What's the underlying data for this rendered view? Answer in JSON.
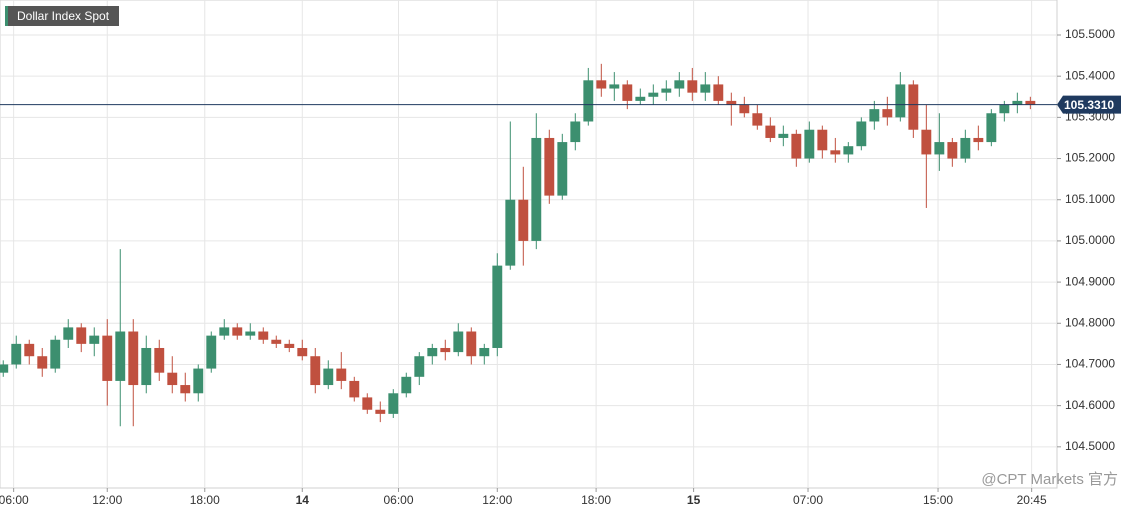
{
  "chart_data": {
    "type": "candlestick",
    "title": "Dollar Index Spot",
    "watermark": "@CPT Markets 官方",
    "up_color": "#3c8f6f",
    "down_color": "#c0503f",
    "grid": true,
    "xlim": [
      -0.25,
      81.05
    ],
    "ylim": [
      104.4,
      105.585
    ],
    "xticks": [
      {
        "value": 0.8,
        "label": "06:00"
      },
      {
        "value": 8,
        "label": "12:00"
      },
      {
        "value": 15.5,
        "label": "18:00"
      },
      {
        "value": 23,
        "label": "14"
      },
      {
        "value": 30.4,
        "label": "06:00"
      },
      {
        "value": 38,
        "label": "12:00"
      },
      {
        "value": 45.6,
        "label": "18:00"
      },
      {
        "value": 53.1,
        "label": "15"
      },
      {
        "value": 61.9,
        "label": "07:00"
      },
      {
        "value": 71.9,
        "label": "15:00"
      },
      {
        "value": 79.1,
        "label": "20:45"
      }
    ],
    "yticks": [
      {
        "value": 104.5,
        "label": "104.5000"
      },
      {
        "value": 104.6,
        "label": "104.6000"
      },
      {
        "value": 104.7,
        "label": "104.7000"
      },
      {
        "value": 104.8,
        "label": "104.8000"
      },
      {
        "value": 104.9,
        "label": "104.9000"
      },
      {
        "value": 105.0,
        "label": "105.0000"
      },
      {
        "value": 105.1,
        "label": "105.1000"
      },
      {
        "value": 105.2,
        "label": "105.2000"
      },
      {
        "value": 105.3,
        "label": "105.3000"
      },
      {
        "value": 105.4,
        "label": "105.4000"
      },
      {
        "value": 105.5,
        "label": "105.5000"
      }
    ],
    "last_price": {
      "value": 105.331,
      "label": "105.3310"
    },
    "open": [
      104.68,
      104.7,
      104.75,
      104.72,
      104.69,
      104.76,
      104.79,
      104.75,
      104.77,
      104.66,
      104.78,
      104.65,
      104.74,
      104.68,
      104.65,
      104.63,
      104.69,
      104.77,
      104.79,
      104.77,
      104.78,
      104.76,
      104.75,
      104.74,
      104.72,
      104.65,
      104.69,
      104.66,
      104.62,
      104.59,
      104.58,
      104.63,
      104.67,
      104.72,
      104.74,
      104.73,
      104.78,
      104.72,
      104.74,
      104.94,
      105.1,
      105.0,
      105.25,
      105.11,
      105.24,
      105.29,
      105.39,
      105.37,
      105.38,
      105.34,
      105.35,
      105.36,
      105.37,
      105.39,
      105.36,
      105.38,
      105.34,
      105.33,
      105.31,
      105.28,
      105.25,
      105.26,
      105.2,
      105.27,
      105.22,
      105.21,
      105.23,
      105.29,
      105.32,
      105.3,
      105.38,
      105.27,
      105.21,
      105.24,
      105.2,
      105.25,
      105.24,
      105.31,
      105.33,
      105.34
    ],
    "high": [
      104.71,
      104.77,
      104.76,
      104.74,
      104.77,
      104.81,
      104.8,
      104.79,
      104.81,
      104.98,
      104.81,
      104.77,
      104.76,
      104.72,
      104.68,
      104.7,
      104.78,
      104.81,
      104.8,
      104.8,
      104.79,
      104.77,
      104.76,
      104.76,
      104.74,
      104.71,
      104.73,
      104.67,
      104.63,
      104.61,
      104.64,
      104.68,
      104.73,
      104.75,
      104.76,
      104.8,
      104.79,
      104.75,
      104.97,
      105.29,
      105.18,
      105.31,
      105.27,
      105.26,
      105.31,
      105.42,
      105.43,
      105.41,
      105.39,
      105.37,
      105.38,
      105.39,
      105.41,
      105.42,
      105.41,
      105.4,
      105.36,
      105.35,
      105.33,
      105.3,
      105.28,
      105.27,
      105.29,
      105.28,
      105.25,
      105.24,
      105.3,
      105.34,
      105.35,
      105.41,
      105.39,
      105.33,
      105.31,
      105.25,
      105.27,
      105.28,
      105.32,
      105.34,
      105.36,
      105.35
    ],
    "low": [
      104.67,
      104.69,
      104.7,
      104.67,
      104.68,
      104.74,
      104.73,
      104.72,
      104.6,
      104.55,
      104.55,
      104.63,
      104.66,
      104.63,
      104.61,
      104.61,
      104.68,
      104.76,
      104.76,
      104.76,
      104.75,
      104.74,
      104.73,
      104.71,
      104.63,
      104.64,
      104.64,
      104.61,
      104.58,
      104.56,
      104.57,
      104.62,
      104.65,
      104.7,
      104.71,
      104.72,
      104.7,
      104.7,
      104.72,
      104.93,
      104.94,
      104.98,
      105.09,
      105.1,
      105.22,
      105.28,
      105.35,
      105.34,
      105.32,
      105.33,
      105.33,
      105.34,
      105.35,
      105.34,
      105.34,
      105.33,
      105.28,
      105.3,
      105.27,
      105.24,
      105.23,
      105.18,
      105.19,
      105.2,
      105.19,
      105.19,
      105.22,
      105.27,
      105.28,
      105.29,
      105.25,
      105.08,
      105.17,
      105.18,
      105.19,
      105.22,
      105.23,
      105.29,
      105.31,
      105.32
    ],
    "close": [
      104.7,
      104.75,
      104.72,
      104.69,
      104.76,
      104.79,
      104.75,
      104.77,
      104.66,
      104.78,
      104.65,
      104.74,
      104.68,
      104.65,
      104.63,
      104.69,
      104.77,
      104.79,
      104.77,
      104.78,
      104.76,
      104.75,
      104.74,
      104.72,
      104.65,
      104.69,
      104.66,
      104.62,
      104.59,
      104.58,
      104.63,
      104.67,
      104.72,
      104.74,
      104.73,
      104.78,
      104.72,
      104.74,
      104.94,
      105.1,
      105.0,
      105.25,
      105.11,
      105.24,
      105.29,
      105.39,
      105.37,
      105.38,
      105.34,
      105.35,
      105.36,
      105.37,
      105.39,
      105.36,
      105.38,
      105.34,
      105.33,
      105.31,
      105.28,
      105.25,
      105.26,
      105.2,
      105.27,
      105.22,
      105.21,
      105.23,
      105.29,
      105.32,
      105.3,
      105.38,
      105.27,
      105.21,
      105.24,
      105.2,
      105.25,
      105.24,
      105.31,
      105.33,
      105.34,
      105.331
    ]
  }
}
